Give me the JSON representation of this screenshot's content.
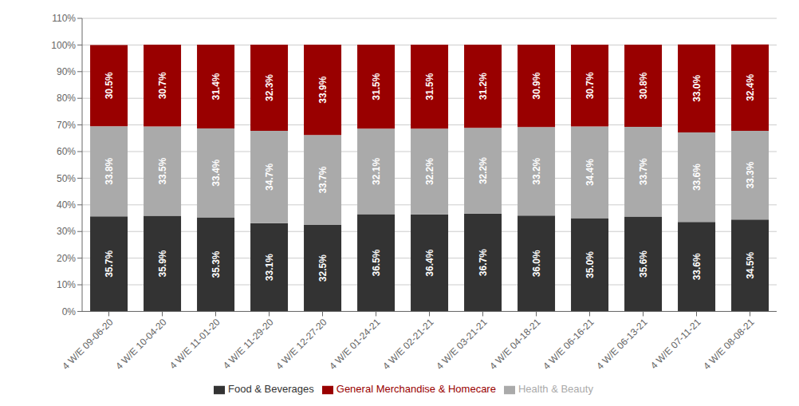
{
  "chart_data": {
    "type": "bar",
    "stacked": true,
    "grid": true,
    "legend": "bottom",
    "data_labels": true,
    "categories": [
      "4 W/E 09-06-20",
      "4 W/E 10-04-20",
      "4 W/E 11-01-20",
      "4 W/E 11-29-20",
      "4 W/E 12-27-20",
      "4 W/E 01-24-21",
      "4 W/E 02-21-21",
      "4 W/E 03-21-21",
      "4 W/E 04-18-21",
      "4 W/E 06-16-21",
      "4 W/E 06-13-21",
      "4 W/E 07-11-21",
      "4 W/E 08-08-21"
    ],
    "series": [
      {
        "name": "Food & Beverages",
        "color": "#333333",
        "values": [
          35.7,
          35.9,
          35.3,
          33.1,
          32.5,
          36.5,
          36.4,
          36.7,
          36.0,
          35.0,
          35.6,
          33.6,
          34.5
        ],
        "value_labels": [
          "35.7%",
          "35.9%",
          "35.3%",
          "33.1%",
          "32.5%",
          "36.5%",
          "36.4%",
          "36.7%",
          "36.0%",
          "35.0%",
          "35.6%",
          "33.6%",
          "34.5%"
        ]
      },
      {
        "name": "Health & Beauty",
        "color": "#AAAAAA",
        "values": [
          33.8,
          33.5,
          33.4,
          34.7,
          33.7,
          32.1,
          32.2,
          32.2,
          33.2,
          34.4,
          33.7,
          33.6,
          33.3
        ],
        "value_labels": [
          "33.8%",
          "33.5%",
          "33.4%",
          "34.7%",
          "33.7%",
          "32.1%",
          "32.2%",
          "32.2%",
          "33.2%",
          "34.4%",
          "33.7%",
          "33.6%",
          "33.3%"
        ]
      },
      {
        "name": "General Merchandise & Homecare",
        "color": "#990000",
        "values": [
          30.5,
          30.7,
          31.4,
          32.3,
          33.9,
          31.5,
          31.5,
          31.2,
          30.9,
          30.7,
          30.8,
          33.0,
          32.4
        ],
        "value_labels": [
          "30.5%",
          "30.7%",
          "31.4%",
          "32.3%",
          "33.9%",
          "31.5%",
          "31.5%",
          "31.2%",
          "30.9%",
          "30.7%",
          "30.8%",
          "33.0%",
          "32.4%"
        ]
      }
    ],
    "ylim": [
      0,
      110
    ],
    "yticks": [
      {
        "value": 0,
        "label": "0%"
      },
      {
        "value": 10,
        "label": "10%"
      },
      {
        "value": 20,
        "label": "20%"
      },
      {
        "value": 30,
        "label": "30%"
      },
      {
        "value": 40,
        "label": "40%"
      },
      {
        "value": 50,
        "label": "50%"
      },
      {
        "value": 60,
        "label": "60%"
      },
      {
        "value": 70,
        "label": "70%"
      },
      {
        "value": 80,
        "label": "80%"
      },
      {
        "value": 90,
        "label": "90%"
      },
      {
        "value": 100,
        "label": "100%"
      },
      {
        "value": 110,
        "label": "110%"
      }
    ]
  }
}
